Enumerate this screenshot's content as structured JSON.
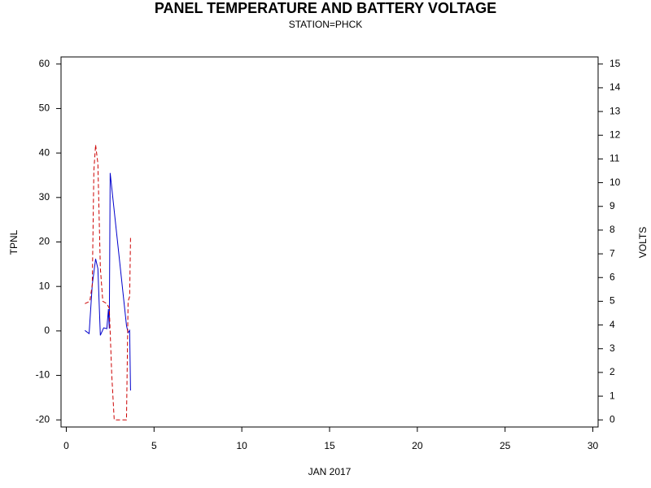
{
  "chart_data": {
    "type": "line",
    "title": "PANEL TEMPERATURE AND BATTERY VOLTAGE",
    "subtitle": "STATION=PHCK",
    "x_label": "JAN 2017",
    "y_label": "TPNL",
    "y2_label": "VOLTS",
    "xlim": [
      -0.3,
      30.3
    ],
    "xticks": [
      0,
      5,
      10,
      15,
      20,
      25,
      30
    ],
    "ylim": [
      -21.6,
      61.6
    ],
    "yticks": [
      -20,
      -10,
      0,
      10,
      20,
      30,
      40,
      50,
      60
    ],
    "y2lim": [
      -0.3,
      15.3
    ],
    "y2ticks": [
      0,
      1,
      2,
      3,
      4,
      5,
      6,
      7,
      8,
      9,
      10,
      11,
      12,
      13,
      14,
      15
    ],
    "series": [
      {
        "color": "#0000cc",
        "dash": false,
        "x": [
          1.06,
          1.3,
          1.48,
          1.67,
          1.8,
          1.94,
          2.13,
          2.31,
          2.4,
          2.45,
          2.5,
          3.43,
          3.52,
          3.61,
          3.66
        ],
        "values": [
          0.1,
          -0.6,
          10.4,
          16.2,
          14,
          -1,
          0.7,
          0.5,
          4.9,
          0.5,
          35.5,
          1.2,
          -0.4,
          0.1,
          -13.4
        ]
      },
      {
        "color": "#cc0000",
        "dash": true,
        "axis": "y2",
        "x": [
          1.06,
          1.34,
          1.48,
          1.57,
          1.67,
          1.8,
          1.94,
          2.08,
          2.31,
          2.45,
          2.59,
          2.73,
          3.19,
          3.43,
          3.52,
          3.61,
          3.66
        ],
        "values": [
          4.9,
          5.0,
          5.7,
          10.5,
          11.6,
          10.8,
          6.4,
          5.0,
          4.9,
          4.7,
          1.9,
          0,
          0,
          0,
          5.0,
          5.2,
          7.7
        ]
      }
    ]
  }
}
